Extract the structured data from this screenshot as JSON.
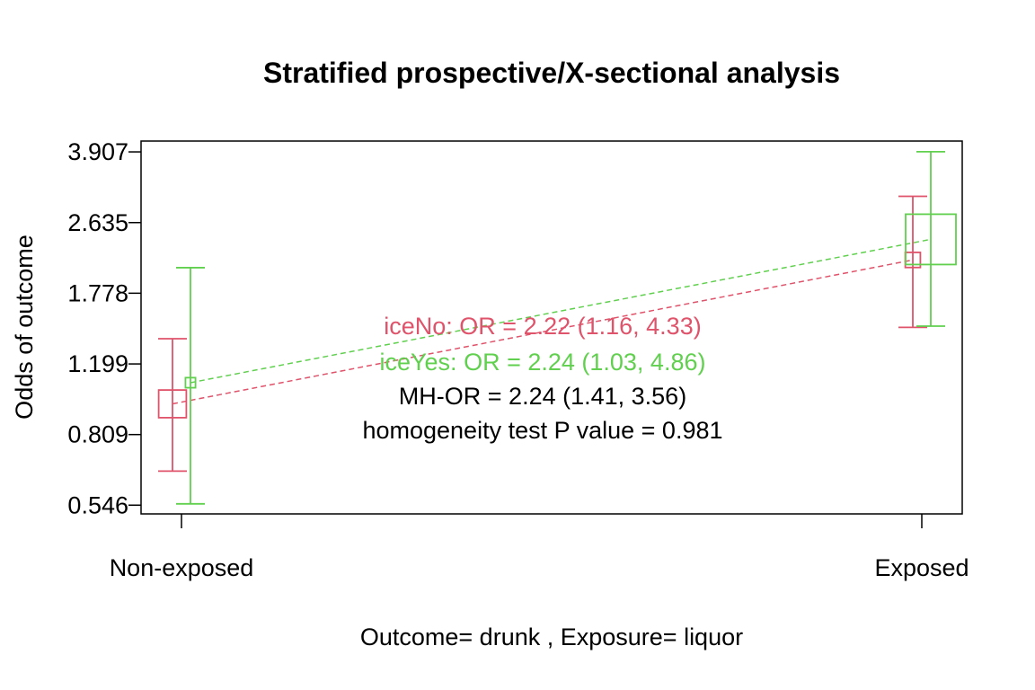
{
  "chart_data": {
    "type": "line",
    "title": "Stratified prospective/X-sectional analysis",
    "xlabel": "Outcome= drunk , Exposure= liquor",
    "ylabel": "Odds of outcome",
    "y_scale": "log",
    "categories": [
      "Non-exposed",
      "Exposed"
    ],
    "y_ticks": [
      "0.546",
      "0.809",
      "1.199",
      "1.778",
      "2.635",
      "3.907"
    ],
    "ylim": [
      0.52,
      4.15
    ],
    "series": [
      {
        "name": "iceNo",
        "color": "#DF536B",
        "odds": [
          0.96,
          2.14
        ],
        "lower": [
          0.66,
          1.47
        ],
        "upper": [
          1.38,
          3.05
        ],
        "marker_size": [
          0.55,
          0.3
        ]
      },
      {
        "name": "iceYes",
        "color": "#61D04F",
        "odds": [
          1.08,
          2.4
        ],
        "lower": [
          0.55,
          1.48
        ],
        "upper": [
          2.05,
          3.91
        ],
        "marker_size": [
          0.2,
          1.0
        ]
      }
    ],
    "annotations": [
      {
        "text": "iceNo: OR = 2.22 (1.16, 4.33)",
        "color": "#DF536B"
      },
      {
        "text": "iceYes: OR = 2.24 (1.03, 4.86)",
        "color": "#61D04F"
      },
      {
        "text": "MH-OR = 2.24 (1.41, 3.56)",
        "color": "#000000"
      },
      {
        "text": "homogeneity test P value = 0.981",
        "color": "#000000"
      }
    ]
  }
}
